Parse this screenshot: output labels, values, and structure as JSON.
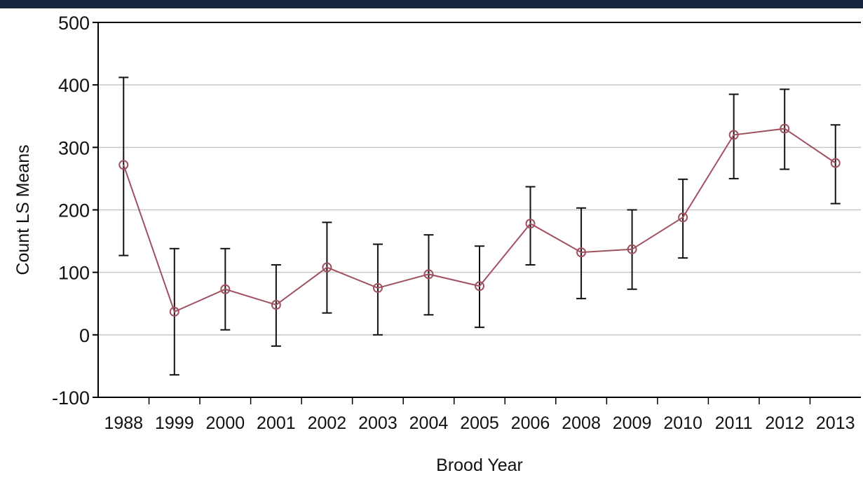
{
  "chart_data": {
    "type": "line",
    "xlabel": "Brood Year",
    "ylabel": "Count LS Means",
    "ylim": [
      -100,
      500
    ],
    "yticks": [
      -100,
      0,
      100,
      200,
      300,
      400,
      500
    ],
    "grid": true,
    "legend": "none",
    "categories": [
      "1988",
      "1999",
      "2000",
      "2001",
      "2002",
      "2003",
      "2004",
      "2005",
      "2006",
      "2008",
      "2009",
      "2010",
      "2011",
      "2012",
      "2013"
    ],
    "series": [
      {
        "values": [
          272,
          37,
          73,
          48,
          108,
          75,
          97,
          78,
          178,
          132,
          137,
          188,
          320,
          330,
          275
        ],
        "lower": [
          127,
          -64,
          8,
          -18,
          35,
          0,
          32,
          12,
          112,
          58,
          73,
          123,
          250,
          265,
          210
        ],
        "upper": [
          412,
          138,
          138,
          112,
          180,
          145,
          160,
          142,
          237,
          203,
          200,
          249,
          385,
          393,
          336
        ]
      }
    ]
  },
  "colors": {
    "top_bar": "#16243e",
    "line": "#a0505f",
    "marker": "#a0505f",
    "error_bar": "#111111",
    "grid": "#c8c8c8",
    "axis": "#000000"
  }
}
